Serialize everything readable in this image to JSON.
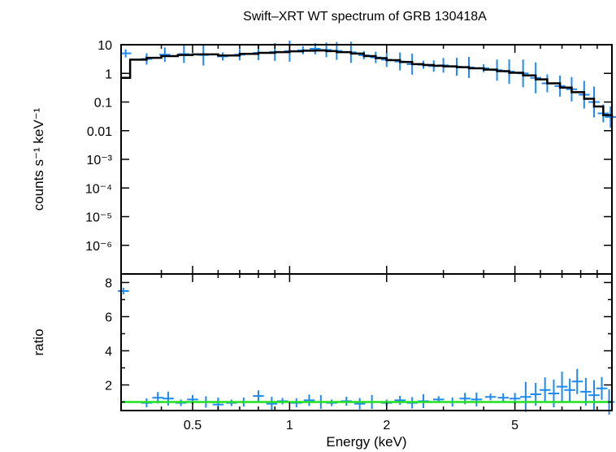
{
  "chart_data": [
    {
      "panel": "spectrum",
      "type": "scatter",
      "title": "Swift–XRT WT spectrum of GRB 130418A",
      "xlabel": "",
      "ylabel": "counts s⁻¹ keV⁻¹",
      "xscale": "log",
      "yscale": "log",
      "xlim": [
        0.3,
        10
      ],
      "ylim": [
        1e-07,
        10
      ],
      "yticks": [
        "10",
        "1",
        "0.1",
        "0.01",
        "10⁻³",
        "10⁻⁴",
        "10⁻⁵",
        "10⁻⁶"
      ],
      "grid": false,
      "colors": {
        "data": "#1e8af0",
        "model": "#000000"
      },
      "series": [
        {
          "style": "crosses with error bars",
          "points": [
            [
              0.31,
              5.0
            ],
            [
              0.36,
              3.2
            ],
            [
              0.41,
              4.5
            ],
            [
              0.47,
              4.7
            ],
            [
              0.54,
              4.4
            ],
            [
              0.62,
              3.9
            ],
            [
              0.7,
              4.5
            ],
            [
              0.8,
              5.2
            ],
            [
              0.9,
              5.6
            ],
            [
              1.0,
              6.0
            ],
            [
              1.1,
              6.4
            ],
            [
              1.2,
              7.2
            ],
            [
              1.3,
              6.6
            ],
            [
              1.4,
              6.1
            ],
            [
              1.55,
              5.4
            ],
            [
              1.7,
              4.3
            ],
            [
              1.85,
              3.6
            ],
            [
              2.0,
              3.0
            ],
            [
              2.2,
              2.6
            ],
            [
              2.4,
              2.1
            ],
            [
              2.6,
              2.0
            ],
            [
              2.8,
              1.8
            ],
            [
              3.0,
              1.9
            ],
            [
              3.3,
              1.7
            ],
            [
              3.6,
              1.6
            ],
            [
              4.0,
              1.5
            ],
            [
              4.4,
              1.3
            ],
            [
              4.8,
              1.15
            ],
            [
              5.3,
              1.0
            ],
            [
              5.8,
              0.7
            ],
            [
              6.3,
              0.45
            ],
            [
              6.9,
              0.36
            ],
            [
              7.5,
              0.28
            ],
            [
              8.2,
              0.18
            ],
            [
              8.8,
              0.1
            ],
            [
              9.4,
              0.04
            ],
            [
              9.9,
              0.03
            ]
          ]
        },
        {
          "style": "step model",
          "points": [
            [
              0.3,
              0.7
            ],
            [
              0.32,
              3.0
            ],
            [
              0.36,
              3.5
            ],
            [
              0.4,
              4.0
            ],
            [
              0.45,
              4.4
            ],
            [
              0.5,
              4.6
            ],
            [
              0.6,
              4.2
            ],
            [
              0.7,
              4.8
            ],
            [
              0.8,
              5.2
            ],
            [
              0.9,
              5.5
            ],
            [
              1.0,
              5.9
            ],
            [
              1.1,
              6.2
            ],
            [
              1.2,
              6.3
            ],
            [
              1.3,
              6.0
            ],
            [
              1.4,
              5.5
            ],
            [
              1.55,
              4.9
            ],
            [
              1.7,
              4.0
            ],
            [
              1.85,
              3.4
            ],
            [
              2.0,
              2.9
            ],
            [
              2.2,
              2.5
            ],
            [
              2.4,
              2.1
            ],
            [
              2.6,
              1.95
            ],
            [
              2.8,
              1.85
            ],
            [
              3.0,
              1.75
            ],
            [
              3.3,
              1.65
            ],
            [
              3.6,
              1.5
            ],
            [
              4.0,
              1.35
            ],
            [
              4.4,
              1.2
            ],
            [
              4.8,
              1.05
            ],
            [
              5.3,
              0.85
            ],
            [
              5.8,
              0.62
            ],
            [
              6.3,
              0.45
            ],
            [
              6.9,
              0.32
            ],
            [
              7.5,
              0.22
            ],
            [
              8.2,
              0.13
            ],
            [
              8.8,
              0.07
            ],
            [
              9.4,
              0.035
            ],
            [
              10.0,
              0.025
            ]
          ]
        }
      ]
    },
    {
      "panel": "ratio",
      "type": "scatter",
      "xlabel": "Energy (keV)",
      "ylabel": "ratio",
      "xscale": "log",
      "xlim": [
        0.3,
        10
      ],
      "ylim": [
        0.5,
        8.5
      ],
      "xticks": [
        {
          "v": 0.5,
          "t": "0.5"
        },
        {
          "v": 1,
          "t": "1"
        },
        {
          "v": 2,
          "t": "2"
        },
        {
          "v": 5,
          "t": "5"
        }
      ],
      "yticks": [
        {
          "v": 8,
          "t": "8"
        },
        {
          "v": 6,
          "t": "6"
        },
        {
          "v": 4,
          "t": "4"
        },
        {
          "v": 2,
          "t": "2"
        }
      ],
      "grid": false,
      "reference_line": 1.0,
      "colors": {
        "data": "#1e8af0",
        "line": "#20e020"
      },
      "series": [
        {
          "style": "crosses with error bars",
          "points": [
            [
              0.305,
              7.5
            ],
            [
              0.36,
              0.95
            ],
            [
              0.39,
              1.25
            ],
            [
              0.42,
              1.2
            ],
            [
              0.46,
              0.95
            ],
            [
              0.5,
              1.15
            ],
            [
              0.55,
              1.0
            ],
            [
              0.6,
              0.85
            ],
            [
              0.66,
              0.95
            ],
            [
              0.72,
              1.0
            ],
            [
              0.8,
              1.35
            ],
            [
              0.88,
              0.9
            ],
            [
              0.95,
              1.05
            ],
            [
              1.05,
              0.95
            ],
            [
              1.15,
              1.1
            ],
            [
              1.25,
              1.0
            ],
            [
              1.35,
              0.95
            ],
            [
              1.5,
              1.05
            ],
            [
              1.65,
              0.9
            ],
            [
              1.8,
              1.0
            ],
            [
              2.0,
              0.95
            ],
            [
              2.2,
              1.1
            ],
            [
              2.4,
              0.95
            ],
            [
              2.6,
              1.05
            ],
            [
              2.9,
              1.15
            ],
            [
              3.2,
              1.0
            ],
            [
              3.5,
              1.2
            ],
            [
              3.8,
              1.15
            ],
            [
              4.2,
              1.3
            ],
            [
              4.6,
              1.25
            ],
            [
              5.0,
              1.2
            ],
            [
              5.4,
              1.3
            ],
            [
              5.8,
              1.45
            ],
            [
              6.2,
              1.7
            ],
            [
              6.6,
              1.5
            ],
            [
              7.0,
              1.9
            ],
            [
              7.4,
              1.7
            ],
            [
              7.8,
              2.2
            ],
            [
              8.3,
              1.6
            ],
            [
              8.8,
              1.4
            ],
            [
              9.3,
              1.8
            ],
            [
              9.8,
              1.0
            ]
          ]
        }
      ]
    }
  ]
}
